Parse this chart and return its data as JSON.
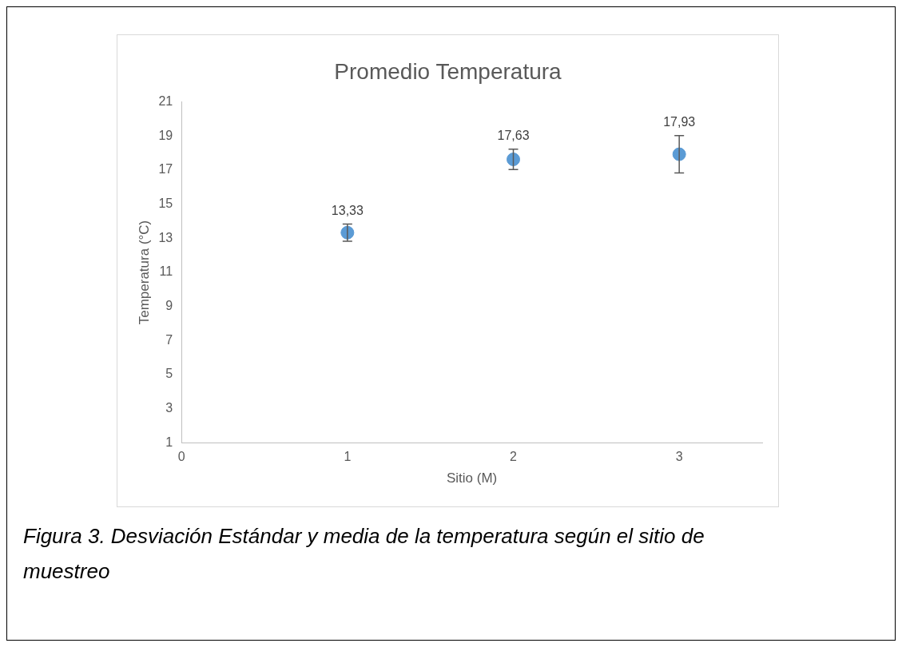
{
  "chart_data": {
    "type": "scatter",
    "title": "Promedio Temperatura",
    "xlabel": "Sitio (M)",
    "ylabel": "Temperatura (°C)",
    "x": [
      1,
      2,
      3
    ],
    "series": [
      {
        "color": "#5b9bd5",
        "values": [
          13.33,
          17.63,
          17.93
        ],
        "errors": [
          0.5,
          0.6,
          1.1
        ],
        "value_labels": [
          "13,33",
          "17,63",
          "17,93"
        ]
      }
    ],
    "xlim": [
      0,
      3.5
    ],
    "xticks": [
      0,
      1,
      2,
      3
    ],
    "ylim": [
      1,
      21
    ],
    "yticks": [
      1,
      3,
      5,
      7,
      9,
      11,
      13,
      15,
      17,
      19,
      21
    ],
    "grid": false,
    "legend": false,
    "marker": "circle",
    "annotations": [
      "Figura 3. Desviación Estándar y media de la temperatura según el sitio de muestreo"
    ]
  }
}
